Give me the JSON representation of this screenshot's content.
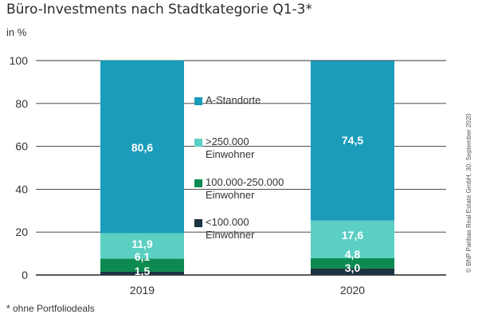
{
  "header": {
    "title": "Büro-Investments nach Stadtkategorie Q1-3*",
    "unit": "in %"
  },
  "footnote": "* ohne Portfoliodeals",
  "source": "© BNP Paribas Real Estate GmbH, 30. September 2020",
  "chart_data": {
    "type": "bar",
    "stacked": true,
    "title": "Büro-Investments nach Stadtkategorie Q1-3*",
    "ylabel": "in %",
    "xlabel": "",
    "ylim": [
      0,
      100
    ],
    "yticks": [
      0,
      20,
      40,
      60,
      80,
      100
    ],
    "grid": true,
    "categories": [
      "2019",
      "2020"
    ],
    "series": [
      {
        "name": "<100.000 Einwohner",
        "legend_lines": [
          "<100.000",
          "Einwohner"
        ],
        "color": "#1c3340",
        "values": [
          1.5,
          3.0
        ],
        "labels": [
          "1,5",
          "3,0"
        ]
      },
      {
        "name": "100.000-250.000 Einwohner",
        "legend_lines": [
          "100.000-250.000",
          "Einwohner"
        ],
        "color": "#0d8a50",
        "values": [
          6.1,
          4.8
        ],
        "labels": [
          "6,1",
          "4,8"
        ]
      },
      {
        "name": ">250.000 Einwohner",
        "legend_lines": [
          ">250.000",
          "Einwohner"
        ],
        "color": "#5ccfc3",
        "values": [
          11.9,
          17.6
        ],
        "labels": [
          "11,9",
          "17,6"
        ]
      },
      {
        "name": "A-Standorte",
        "legend_lines": [
          "A-Standorte"
        ],
        "color": "#1b9cba",
        "values": [
          80.6,
          74.5
        ],
        "labels": [
          "80,6",
          "74,5"
        ]
      }
    ],
    "legend_order": [
      3,
      2,
      1,
      0
    ]
  }
}
